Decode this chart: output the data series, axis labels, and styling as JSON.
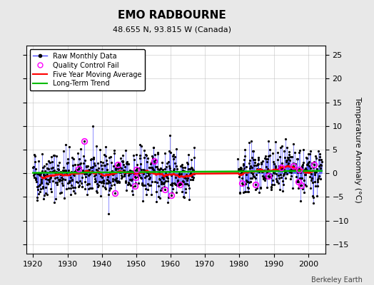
{
  "title": "EMO RADBOURNE",
  "subtitle": "48.655 N, 93.815 W (Canada)",
  "watermark": "Berkeley Earth",
  "ylabel": "Temperature Anomaly (°C)",
  "xlim": [
    1918,
    2005
  ],
  "ylim": [
    -17,
    27
  ],
  "yticks": [
    -15,
    -10,
    -5,
    0,
    5,
    10,
    15,
    20,
    25
  ],
  "xticks": [
    1920,
    1930,
    1940,
    1950,
    1960,
    1970,
    1980,
    1990,
    2000
  ],
  "start_year": 1920,
  "end_year": 2003,
  "background_color": "#e8e8e8",
  "plot_bg_color": "#ffffff",
  "raw_line_color": "#4444ff",
  "raw_dot_color": "#000000",
  "moving_avg_color": "#ff0000",
  "trend_color": "#00bb00",
  "qc_color": "#ff00ff",
  "seed": 42
}
